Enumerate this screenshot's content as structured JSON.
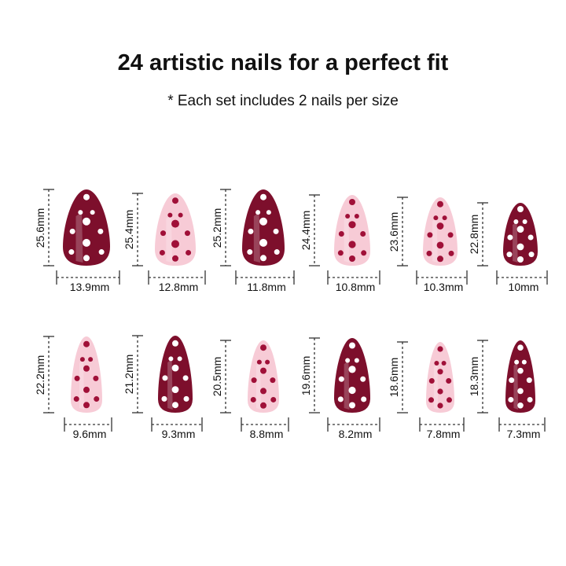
{
  "title": "24 artistic nails for a perfect fit",
  "subtitle": "* Each set includes 2 nails per size",
  "colors": {
    "burgundy": "#7d0f2c",
    "pink": "#f7cbd6",
    "dot_on_pink": "#a01038",
    "dot_on_burgundy": "#ffffff"
  },
  "rows": [
    [
      {
        "length": "25.6mm",
        "width": "13.9mm",
        "style": "burgundy"
      },
      {
        "length": "25.4mm",
        "width": "12.8mm",
        "style": "pink"
      },
      {
        "length": "25.2mm",
        "width": "11.8mm",
        "style": "burgundy"
      },
      {
        "length": "24.4mm",
        "width": "10.8mm",
        "style": "pink"
      },
      {
        "length": "23.6mm",
        "width": "10.3mm",
        "style": "pink"
      },
      {
        "length": "22.8mm",
        "width": "10mm",
        "style": "burgundy"
      }
    ],
    [
      {
        "length": "22.2mm",
        "width": "9.6mm",
        "style": "pink"
      },
      {
        "length": "21.2mm",
        "width": "9.3mm",
        "style": "burgundy"
      },
      {
        "length": "20.5mm",
        "width": "8.8mm",
        "style": "pink"
      },
      {
        "length": "19.6mm",
        "width": "8.2mm",
        "style": "burgundy"
      },
      {
        "length": "18.6mm",
        "width": "7.8mm",
        "style": "pink"
      },
      {
        "length": "18.3mm",
        "width": "7.3mm",
        "style": "burgundy"
      }
    ]
  ]
}
